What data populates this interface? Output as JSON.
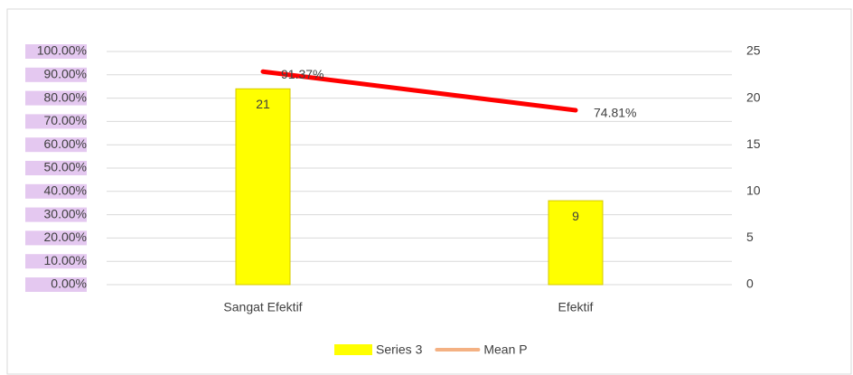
{
  "chart_data": {
    "type": "bar",
    "categories": [
      "Sangat Efektif",
      "Efektif"
    ],
    "series": [
      {
        "name": "Series 3",
        "type": "bar",
        "axis": "y2",
        "color": "#ffff00",
        "values": [
          21,
          9
        ]
      },
      {
        "name": "Mean P",
        "type": "line",
        "color": "#ff0000",
        "legend_color": "#f4b183",
        "values": [
          91.37,
          74.81
        ],
        "value_labels": [
          "91.37%",
          "74.81%"
        ]
      }
    ],
    "ylim": [
      0,
      100
    ],
    "yticks": [
      {
        "value": 0,
        "label": "0.00%"
      },
      {
        "value": 10,
        "label": "10.00%"
      },
      {
        "value": 20,
        "label": "20.00%"
      },
      {
        "value": 30,
        "label": "30.00%"
      },
      {
        "value": 40,
        "label": "40.00%"
      },
      {
        "value": 50,
        "label": "50.00%"
      },
      {
        "value": 60,
        "label": "60.00%"
      },
      {
        "value": 70,
        "label": "70.00%"
      },
      {
        "value": 80,
        "label": "80.00%"
      },
      {
        "value": 90,
        "label": "90.00%"
      },
      {
        "value": 100,
        "label": "100.00%"
      }
    ],
    "y2lim": [
      0,
      25
    ],
    "y2ticks": [
      0,
      5,
      10,
      15,
      20,
      25
    ],
    "grid": true,
    "legend": "bottom"
  }
}
